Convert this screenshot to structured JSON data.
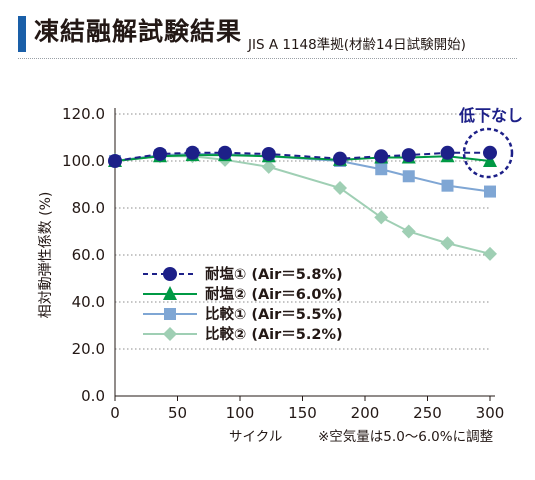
{
  "header": {
    "title": "凍結融解試験結果",
    "subtitle": "JIS A 1148準拠(材齢14日試験開始)"
  },
  "chart_data": {
    "type": "line",
    "xlabel": "サイクル",
    "ylabel": "相対動弾性係数 (%)",
    "xlim": [
      0,
      300
    ],
    "ylim": [
      0,
      120
    ],
    "x_ticks": [
      "0",
      "50",
      "100",
      "150",
      "200",
      "250",
      "300"
    ],
    "y_ticks": [
      "0.0",
      "20.0",
      "40.0",
      "60.0",
      "80.0",
      "100.0",
      "120.0"
    ],
    "grid": "horizontal dotted",
    "legend_position": "left-center",
    "note": "※空気量は5.0〜6.0%に調整",
    "annotation": "低下なし",
    "series": [
      {
        "name": "耐塩① (Air＝5.8%)",
        "color": "#1d2088",
        "marker": "circle",
        "line_style": "dashed",
        "x": [
          0,
          36,
          62,
          88,
          123,
          180,
          213,
          235,
          266,
          300
        ],
        "y": [
          100.0,
          103.0,
          103.5,
          103.5,
          103.0,
          101.0,
          102.0,
          102.5,
          103.5,
          103.5
        ]
      },
      {
        "name": "耐塩② (Air＝6.0%)",
        "color": "#009944",
        "marker": "triangle",
        "line_style": "solid",
        "x": [
          0,
          36,
          62,
          88,
          123,
          180,
          213,
          235,
          266,
          300
        ],
        "y": [
          100.0,
          102.0,
          102.5,
          102.5,
          102.0,
          100.5,
          101.5,
          101.5,
          102.0,
          100.0
        ]
      },
      {
        "name": "比較① (Air＝5.5%)",
        "color": "#7fa6d4",
        "marker": "square",
        "line_style": "solid",
        "x": [
          0,
          36,
          62,
          88,
          123,
          180,
          213,
          235,
          266,
          300
        ],
        "y": [
          100.0,
          102.5,
          103.0,
          103.0,
          102.0,
          100.0,
          96.5,
          93.5,
          89.5,
          87.0
        ]
      },
      {
        "name": "比較② (Air＝5.2%)",
        "color": "#9fcfb4",
        "marker": "diamond",
        "line_style": "solid",
        "x": [
          0,
          36,
          62,
          88,
          123,
          180,
          213,
          235,
          266,
          300
        ],
        "y": [
          100.0,
          102.0,
          102.0,
          100.5,
          97.5,
          88.5,
          76.0,
          70.0,
          65.0,
          60.5
        ]
      }
    ]
  }
}
